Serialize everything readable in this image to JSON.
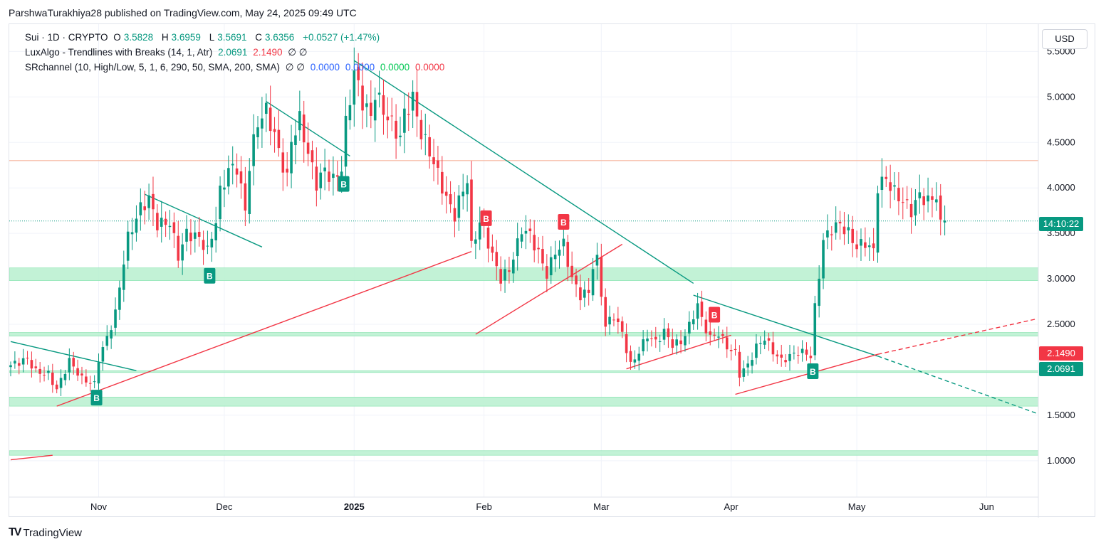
{
  "caption": "ParshwaTurakhiya28 published on TradingView.com, May 24, 2025 09:49 UTC",
  "legend": {
    "symbol": "Sui · 1D · CRYPTO",
    "o_label": "O",
    "o": "3.5828",
    "h_label": "H",
    "h": "3.6959",
    "l_label": "L",
    "l": "3.5691",
    "c_label": "C",
    "c": "3.6356",
    "change": "+0.0527 (+1.47%)",
    "ind1_name": "LuxAlgo - Trendlines with Breaks (14, 1, Atr)",
    "ind1_v1": "2.0691",
    "ind1_v2": "2.1490",
    "ind1_n": "∅ ∅",
    "ind2_name": "SRchannel (10, High/Low, 5, 1, 6, 290, 50, SMA, 200, SMA)",
    "ind2_n": "∅ ∅",
    "ind2_v1": "0.0000",
    "ind2_v2": "0.0000",
    "ind2_v3": "0.0000",
    "ind2_v4": "0.0000"
  },
  "currency": "USD",
  "price_tags": {
    "countdown": "14:10:22",
    "upper_line": "2.1490",
    "lower_line": "2.0691"
  },
  "footer": {
    "logo_mark": "TV",
    "logo_text": "TradingView"
  },
  "colors": {
    "up": "#089981",
    "down": "#f23645",
    "zone": "#b7f0cf",
    "trend_down": "#089981",
    "trend_up": "#f23645",
    "hline": "#f5b39b"
  },
  "chart_data": {
    "type": "candlestick",
    "y_ticks": [
      "5.5000",
      "5.0000",
      "4.5000",
      "4.0000",
      "3.5000",
      "3.0000",
      "2.5000",
      "1.5000",
      "1.0000"
    ],
    "ylim": [
      0.6,
      5.8
    ],
    "x_ticks": [
      "Nov",
      "Dec",
      "2025",
      "Feb",
      "Mar",
      "Apr",
      "May",
      "Jun"
    ],
    "x_tick_days": [
      21,
      51,
      82,
      113,
      141,
      172,
      202,
      233
    ],
    "xlim": [
      0,
      245
    ],
    "last_price": 3.6356,
    "resistance_line": 4.3,
    "sr_zones": [
      [
        2.98,
        3.12
      ],
      [
        2.37,
        2.41
      ],
      [
        1.97,
        1.99
      ],
      [
        1.6,
        1.7
      ],
      [
        1.06,
        1.11
      ]
    ],
    "break_labels": [
      {
        "day": 20.5,
        "price": 1.78,
        "text": "B",
        "dir": "up"
      },
      {
        "day": 47.5,
        "price": 3.12,
        "text": "B",
        "dir": "up"
      },
      {
        "day": 79.5,
        "price": 4.13,
        "text": "B",
        "dir": "up"
      },
      {
        "day": 113.5,
        "price": 3.58,
        "text": "B",
        "dir": "down"
      },
      {
        "day": 132,
        "price": 3.54,
        "text": "B",
        "dir": "down"
      },
      {
        "day": 168,
        "price": 2.52,
        "text": "B",
        "dir": "down"
      },
      {
        "day": 191.5,
        "price": 2.07,
        "text": "B",
        "dir": "up"
      }
    ],
    "trendlines_down": [
      [
        [
          0,
          2.31
        ],
        [
          30,
          1.99
        ]
      ],
      [
        [
          32,
          3.93
        ],
        [
          60,
          3.35
        ]
      ],
      [
        [
          61,
          4.95
        ],
        [
          81,
          4.35
        ]
      ],
      [
        [
          82,
          5.4
        ],
        [
          163,
          2.95
        ]
      ],
      [
        [
          163,
          2.82
        ],
        [
          207,
          2.15
        ]
      ],
      [
        [
          207,
          2.15
        ],
        [
          245,
          1.52
        ],
        "dashed"
      ]
    ],
    "trendlines_up": [
      [
        [
          0,
          1.01
        ],
        [
          10,
          1.06
        ]
      ],
      [
        [
          11,
          1.6
        ],
        [
          110,
          3.3
        ]
      ],
      [
        [
          111,
          2.39
        ],
        [
          146,
          3.38
        ]
      ],
      [
        [
          147,
          2.01
        ],
        [
          172,
          2.38
        ]
      ],
      [
        [
          173,
          1.73
        ],
        [
          207,
          2.17
        ]
      ],
      [
        [
          207,
          2.17
        ],
        [
          245,
          2.56
        ],
        "dashed"
      ]
    ],
    "closes": [
      {
        "day": 0,
        "close": 2.05
      },
      {
        "day": 4,
        "close": 2.12
      },
      {
        "day": 6,
        "close": 1.98
      },
      {
        "day": 9,
        "close": 1.95
      },
      {
        "day": 11,
        "close": 1.78
      },
      {
        "day": 14,
        "close": 2.1
      },
      {
        "day": 17,
        "close": 1.9
      },
      {
        "day": 20,
        "close": 1.84
      },
      {
        "day": 21,
        "close": 2.12
      },
      {
        "day": 23,
        "close": 2.35
      },
      {
        "day": 25,
        "close": 2.62
      },
      {
        "day": 27,
        "close": 3.2
      },
      {
        "day": 28,
        "close": 3.45
      },
      {
        "day": 31,
        "close": 3.78
      },
      {
        "day": 33,
        "close": 3.88
      },
      {
        "day": 35,
        "close": 3.6
      },
      {
        "day": 38,
        "close": 3.62
      },
      {
        "day": 40,
        "close": 3.25
      },
      {
        "day": 42,
        "close": 3.5
      },
      {
        "day": 45,
        "close": 3.45
      },
      {
        "day": 47,
        "close": 3.3
      },
      {
        "day": 49,
        "close": 3.64
      },
      {
        "day": 50,
        "close": 3.95
      },
      {
        "day": 52,
        "close": 4.2
      },
      {
        "day": 54,
        "close": 4.23
      },
      {
        "day": 56,
        "close": 3.75
      },
      {
        "day": 57,
        "close": 4.25
      },
      {
        "day": 58,
        "close": 4.5
      },
      {
        "day": 59,
        "close": 4.72
      },
      {
        "day": 61,
        "close": 4.85
      },
      {
        "day": 63,
        "close": 4.58
      },
      {
        "day": 64,
        "close": 4.4
      },
      {
        "day": 66,
        "close": 4.1
      },
      {
        "day": 67,
        "close": 4.52
      },
      {
        "day": 69,
        "close": 4.75
      },
      {
        "day": 71,
        "close": 4.38
      },
      {
        "day": 73,
        "close": 4.05
      },
      {
        "day": 75,
        "close": 4.2
      },
      {
        "day": 77,
        "close": 4.08
      },
      {
        "day": 79,
        "close": 4.22
      },
      {
        "day": 80,
        "close": 4.7
      },
      {
        "day": 82,
        "close": 5.28
      },
      {
        "day": 84,
        "close": 4.95
      },
      {
        "day": 86,
        "close": 4.78
      },
      {
        "day": 87,
        "close": 5.05
      },
      {
        "day": 89,
        "close": 4.85
      },
      {
        "day": 91,
        "close": 4.7
      },
      {
        "day": 93,
        "close": 4.55
      },
      {
        "day": 94,
        "close": 4.82
      },
      {
        "day": 96,
        "close": 4.98
      },
      {
        "day": 98,
        "close": 4.6
      },
      {
        "day": 100,
        "close": 4.4
      },
      {
        "day": 102,
        "close": 4.15
      },
      {
        "day": 104,
        "close": 3.88
      },
      {
        "day": 106,
        "close": 3.7
      },
      {
        "day": 107,
        "close": 3.85
      },
      {
        "day": 109,
        "close": 4.1
      },
      {
        "day": 110,
        "close": 3.35
      },
      {
        "day": 112,
        "close": 3.62
      },
      {
        "day": 113,
        "close": 3.55
      },
      {
        "day": 115,
        "close": 3.25
      },
      {
        "day": 117,
        "close": 3.0
      },
      {
        "day": 119,
        "close": 3.1
      },
      {
        "day": 121,
        "close": 3.38
      },
      {
        "day": 122,
        "close": 3.55
      },
      {
        "day": 124,
        "close": 3.48
      },
      {
        "day": 126,
        "close": 3.28
      },
      {
        "day": 128,
        "close": 3.05
      },
      {
        "day": 130,
        "close": 3.3
      },
      {
        "day": 132,
        "close": 3.38
      },
      {
        "day": 134,
        "close": 3.0
      },
      {
        "day": 136,
        "close": 2.82
      },
      {
        "day": 138,
        "close": 2.85
      },
      {
        "day": 139,
        "close": 3.15
      },
      {
        "day": 140,
        "close": 3.2
      },
      {
        "day": 142,
        "close": 2.48
      },
      {
        "day": 144,
        "close": 2.6
      },
      {
        "day": 146,
        "close": 2.4
      },
      {
        "day": 148,
        "close": 2.05
      },
      {
        "day": 150,
        "close": 2.2
      },
      {
        "day": 152,
        "close": 2.38
      },
      {
        "day": 154,
        "close": 2.3
      },
      {
        "day": 156,
        "close": 2.42
      },
      {
        "day": 158,
        "close": 2.28
      },
      {
        "day": 160,
        "close": 2.3
      },
      {
        "day": 162,
        "close": 2.48
      },
      {
        "day": 164,
        "close": 2.72
      },
      {
        "day": 165,
        "close": 2.55
      },
      {
        "day": 167,
        "close": 2.35
      },
      {
        "day": 169,
        "close": 2.4
      },
      {
        "day": 171,
        "close": 2.25
      },
      {
        "day": 173,
        "close": 2.18
      },
      {
        "day": 174,
        "close": 1.95
      },
      {
        "day": 176,
        "close": 2.05
      },
      {
        "day": 178,
        "close": 2.25
      },
      {
        "day": 180,
        "close": 2.35
      },
      {
        "day": 182,
        "close": 2.2
      },
      {
        "day": 184,
        "close": 2.1
      },
      {
        "day": 186,
        "close": 2.15
      },
      {
        "day": 188,
        "close": 2.2
      },
      {
        "day": 190,
        "close": 2.18
      },
      {
        "day": 191,
        "close": 2.15
      },
      {
        "day": 192,
        "close": 2.68
      },
      {
        "day": 194,
        "close": 3.42
      },
      {
        "day": 196,
        "close": 3.55
      },
      {
        "day": 198,
        "close": 3.6
      },
      {
        "day": 200,
        "close": 3.5
      },
      {
        "day": 202,
        "close": 3.35
      },
      {
        "day": 204,
        "close": 3.4
      },
      {
        "day": 206,
        "close": 3.3
      },
      {
        "day": 207,
        "close": 4.02
      },
      {
        "day": 209,
        "close": 4.1
      },
      {
        "day": 211,
        "close": 3.95
      },
      {
        "day": 213,
        "close": 3.85
      },
      {
        "day": 215,
        "close": 3.75
      },
      {
        "day": 217,
        "close": 3.92
      },
      {
        "day": 219,
        "close": 3.85
      },
      {
        "day": 221,
        "close": 3.92
      },
      {
        "day": 222,
        "close": 3.58
      },
      {
        "day": 223,
        "close": 3.64
      }
    ]
  }
}
